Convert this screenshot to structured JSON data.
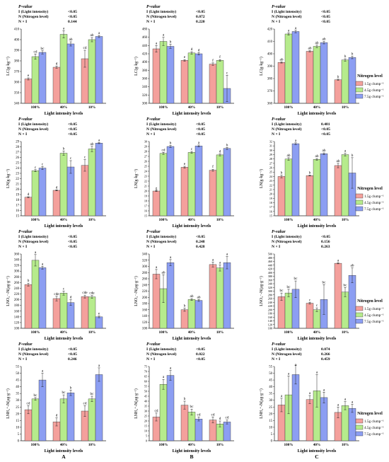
{
  "chart_data": [
    {
      "id": "A1",
      "type": "bar",
      "ylabel": "LC(g·kg⁻¹)",
      "ylim": [
        340,
        410
      ],
      "ystep": 10,
      "pvalue": {
        "title": "P-value",
        "lines": [
          [
            "I (Light intensity)",
            "<0.05",
            ""
          ],
          [
            "N (Nitrogen level)",
            "<0.05",
            ""
          ],
          [
            "N × I",
            "",
            "0.144"
          ]
        ]
      },
      "values": [
        [
          363,
          384,
          388
        ],
        [
          374,
          405,
          396
        ],
        [
          382,
          400,
          403
        ]
      ],
      "errors": [
        [
          1,
          2.5,
          1.5
        ],
        [
          1,
          3.5,
          2
        ],
        [
          8,
          2,
          1
        ]
      ],
      "letters": [
        [
          "e",
          "cd",
          "bc"
        ],
        [
          "d",
          "a",
          "ab"
        ],
        [
          "cd",
          "ab",
          "a"
        ]
      ]
    },
    {
      "id": "B1",
      "type": "bar",
      "ylabel": "LC(g·kg⁻¹)",
      "ylim": [
        300,
        480
      ],
      "ystep": 20,
      "pvalue": {
        "title": "P-value",
        "lines": [
          [
            "I (Light intensity)",
            "<0.05",
            ""
          ],
          [
            "N (Nitrogen level)",
            "0.072",
            ""
          ],
          [
            "N × I",
            "",
            "0.220"
          ]
        ]
      },
      "values": [
        [
          432,
          450,
          438
        ],
        [
          404,
          422,
          420
        ],
        [
          395,
          404,
          336
        ]
      ],
      "errors": [
        [
          8,
          10,
          5
        ],
        [
          2,
          3,
          3
        ],
        [
          3,
          2,
          32
        ]
      ],
      "letters": [
        [
          "a",
          "a",
          "b"
        ],
        [
          "e",
          "d",
          "d"
        ],
        [
          "f",
          "f",
          "c"
        ]
      ]
    },
    {
      "id": "C1",
      "type": "bar",
      "ylabel": "LC(g·kg⁻¹)",
      "ylim": [
        360,
        420
      ],
      "ystep": 10,
      "pvalue": {
        "title": "P-value",
        "lines": [
          [
            "I (Light intensity)",
            "<0.05",
            ""
          ],
          [
            "N (Nitrogen level)",
            "<0.05",
            ""
          ],
          [
            "N × I",
            "",
            "<0.05"
          ]
        ]
      },
      "values": [
        [
          393,
          416,
          418
        ],
        [
          402,
          406,
          409
        ],
        [
          379,
          395,
          397
        ]
      ],
      "errors": [
        [
          0.5,
          1,
          1
        ],
        [
          0.5,
          1,
          1
        ],
        [
          0.5,
          1,
          1
        ]
      ],
      "letters": [
        [
          "ab",
          "a",
          "a"
        ],
        [
          "ab",
          "ab",
          "ab"
        ],
        [
          "b",
          "b",
          "b"
        ]
      ]
    },
    {
      "id": "A2",
      "type": "bar",
      "ylabel": "LN(g·kg⁻¹)",
      "ylim": [
        15,
        29
      ],
      "ystep": 1,
      "pvalue": {
        "title": "P-value",
        "lines": [
          [
            "I (Light intensity)",
            "<0.05",
            ""
          ],
          [
            "N (Nitrogen level)",
            "<0.05",
            ""
          ],
          [
            "N × I",
            "",
            "<0.05"
          ]
        ]
      },
      "values": [
        [
          18.5,
          23.5,
          24
        ],
        [
          19.8,
          26.8,
          24.2
        ],
        [
          24.5,
          27.6,
          28.7
        ]
      ],
      "errors": [
        [
          0.1,
          0.2,
          0.3
        ],
        [
          0.1,
          0.4,
          1.2
        ],
        [
          1.1,
          0.5,
          0.1
        ]
      ],
      "letters": [
        [
          "d",
          "c",
          "c"
        ],
        [
          "d",
          "b",
          "c"
        ],
        [
          "c",
          "ab",
          "a"
        ]
      ]
    },
    {
      "id": "B2",
      "type": "bar",
      "ylabel": "LN(g·kg⁻¹)",
      "ylim": [
        15,
        30
      ],
      "ystep": 1,
      "pvalue": {
        "title": "P-value",
        "lines": [
          [
            "I (Light intensity)",
            "<0.05",
            ""
          ],
          [
            "N (Nitrogen level)",
            "<0.05",
            ""
          ],
          [
            "N × I",
            "",
            "<0.05"
          ]
        ]
      },
      "values": [
        [
          20,
          27.6,
          29
        ],
        [
          24.8,
          27.8,
          29.1
        ],
        [
          24.2,
          27.3,
          28.6
        ]
      ],
      "errors": [
        [
          0.1,
          0.2,
          0.2
        ],
        [
          0.2,
          0.2,
          0.2
        ],
        [
          0.2,
          0.2,
          0.2
        ]
      ],
      "letters": [
        [
          "g",
          "cd",
          "b"
        ],
        [
          "e",
          "c",
          "a"
        ],
        [
          "f",
          "d",
          "b"
        ]
      ]
    },
    {
      "id": "C2",
      "type": "bar",
      "ylabel": "LN(g·kg⁻¹)",
      "ylim": [
        15,
        32
      ],
      "ystep": 1,
      "pvalue": {
        "title": "P-value",
        "lines": [
          [
            "I (Light intensity)",
            "0.481",
            ""
          ],
          [
            "N (Nitrogen level)",
            "<0.05",
            ""
          ],
          [
            "N × I",
            "",
            "<0.05"
          ]
        ]
      },
      "values": [
        [
          24,
          28,
          31.5
        ],
        [
          24.2,
          27.9,
          29.2
        ],
        [
          26.5,
          29,
          24.8
        ]
      ],
      "errors": [
        [
          0.3,
          0.3,
          0.2
        ],
        [
          0.1,
          0.2,
          0.2
        ],
        [
          0.5,
          0.3,
          3.5
        ]
      ],
      "letters": [
        [
          "b",
          "ab",
          "a"
        ],
        [
          "b",
          "ab",
          "ab"
        ],
        [
          "ab",
          "a",
          "b"
        ]
      ]
    },
    {
      "id": "A3",
      "type": "bar",
      "ylabel": "LNO₃⁻-N(μg·g⁻¹)",
      "ylim": [
        100,
        360
      ],
      "ystep": 20,
      "pvalue": {
        "title": "P-value",
        "lines": [
          [
            "I (Light intensity)",
            "<0.05",
            ""
          ],
          [
            "N (Nitrogen level)",
            "<0.05",
            ""
          ],
          [
            "N × I",
            "",
            "<0.05"
          ]
        ]
      },
      "values": [
        [
          253,
          338,
          312
        ],
        [
          204,
          223,
          190
        ],
        [
          211,
          210,
          140
        ]
      ],
      "errors": [
        [
          5,
          20,
          5
        ],
        [
          8,
          7,
          10
        ],
        [
          5,
          5,
          3
        ]
      ],
      "letters": [
        [
          "b",
          "a",
          "a"
        ],
        [
          "cde",
          "c",
          "d"
        ],
        [
          "cde",
          "cde",
          "e"
        ]
      ]
    },
    {
      "id": "B3",
      "type": "bar",
      "ylabel": "LNO₃⁻-N(μg·g⁻¹)",
      "ylim": [
        100,
        340
      ],
      "ystep": 20,
      "pvalue": {
        "title": "P-value",
        "lines": [
          [
            "I (Light intensity)",
            "<0.05",
            ""
          ],
          [
            "N (Nitrogen level)",
            "0.248",
            ""
          ],
          [
            "N × I",
            "",
            "0.428"
          ]
        ]
      },
      "values": [
        [
          275,
          228,
          312
        ],
        [
          160,
          193,
          190
        ],
        [
          306,
          295,
          312
        ]
      ],
      "errors": [
        [
          15,
          45,
          10
        ],
        [
          5,
          3,
          3
        ],
        [
          8,
          10,
          20
        ]
      ],
      "letters": [
        [
          "a",
          "ab",
          "a"
        ],
        [
          "b",
          "ab",
          "ab"
        ],
        [
          "a",
          "a",
          "a"
        ]
      ]
    },
    {
      "id": "C3",
      "type": "bar",
      "ylabel": "LNO₃⁻-N(μg·g⁻¹)",
      "ylim": [
        100,
        500
      ],
      "ystep": 20,
      "pvalue": {
        "title": "P-value",
        "lines": [
          [
            "I (Light intensity)",
            "<0.05",
            ""
          ],
          [
            "N (Nitrogen level)",
            "0.156",
            ""
          ],
          [
            "N × I",
            "",
            "0.263"
          ]
        ]
      },
      "values": [
        [
          270,
          290,
          310
        ],
        [
          235,
          200,
          255
        ],
        [
          450,
          295,
          385
        ]
      ],
      "errors": [
        [
          20,
          20,
          45
        ],
        [
          5,
          10,
          80
        ],
        [
          3,
          25,
          40
        ]
      ],
      "letters": [
        [
          "bc",
          "bc",
          "bc"
        ],
        [
          "c",
          "c",
          "bc"
        ],
        [
          "a",
          "bc",
          "ab"
        ]
      ]
    },
    {
      "id": "A4",
      "type": "bar",
      "ylabel": "LNH₄⁺-N(μg·g⁻¹)",
      "ylim": [
        0,
        55
      ],
      "ystep": 5,
      "pvalue": {
        "title": "P-value",
        "lines": [
          [
            "I (Light intensity)",
            "<0.05",
            ""
          ],
          [
            "N (Nitrogen level)",
            "<0.05",
            ""
          ],
          [
            "N × I",
            "",
            "0.246"
          ]
        ]
      },
      "values": [
        [
          23,
          31,
          45
        ],
        [
          14,
          31,
          35.5
        ],
        [
          22,
          31,
          49
        ]
      ],
      "errors": [
        [
          3,
          1,
          5
        ],
        [
          3,
          3,
          2
        ],
        [
          4,
          2,
          5
        ]
      ],
      "letters": [
        [
          "cd",
          "bc",
          "a"
        ],
        [
          "d",
          "bc",
          "b"
        ],
        [
          "cd",
          "bc",
          "a"
        ]
      ]
    },
    {
      "id": "B4",
      "type": "bar",
      "ylabel": "LNH₄⁺-N(μg·g⁻¹)",
      "ylim": [
        0,
        75
      ],
      "ystep": 5,
      "pvalue": {
        "title": "P-value",
        "lines": [
          [
            "I (Light intensity)",
            "<0.05",
            ""
          ],
          [
            "N (Nitrogen level)",
            "0.022",
            ""
          ],
          [
            "N × I",
            "",
            "<0.05"
          ]
        ]
      },
      "values": [
        [
          24,
          57,
          66
        ],
        [
          36,
          29,
          22
        ],
        [
          21,
          17,
          19
        ]
      ],
      "errors": [
        [
          4,
          5,
          5
        ],
        [
          4,
          3,
          2
        ],
        [
          3,
          3,
          2
        ]
      ],
      "letters": [
        [
          "cd",
          "a",
          "a"
        ],
        [
          "b",
          "bc",
          "cd"
        ],
        [
          "cd",
          "d",
          "cd"
        ]
      ]
    },
    {
      "id": "C4",
      "type": "bar",
      "ylabel": "LNH₄⁺-N(μg·g⁻¹)",
      "ylim": [
        0,
        55
      ],
      "ystep": 5,
      "pvalue": {
        "title": "P-value",
        "lines": [
          [
            "I (Light intensity)",
            "0.074",
            ""
          ],
          [
            "N (Nitrogen level)",
            "0.266",
            ""
          ],
          [
            "N × I",
            "",
            "0.459"
          ]
        ]
      },
      "values": [
        [
          26.5,
          34,
          49
        ],
        [
          30.5,
          37,
          32
        ],
        [
          21,
          26,
          24
        ]
      ],
      "errors": [
        [
          5,
          14,
          7
        ],
        [
          3,
          12,
          4
        ],
        [
          4,
          3,
          3
        ]
      ],
      "letters": [
        [
          "a",
          "a",
          "a"
        ],
        [
          "a",
          "a",
          "a"
        ],
        [
          "a",
          "a",
          "a"
        ]
      ]
    }
  ],
  "categories": [
    "100%",
    "40%",
    "10%"
  ],
  "xlabel": "Light intensity levels",
  "legend": {
    "title": "Nitrogen level",
    "items": [
      "1.5g clump⁻¹",
      "4.5g clump⁻¹",
      "7.5g clump⁻¹"
    ]
  },
  "colors": {
    "series": [
      "#f4a09c",
      "#b6eb8c",
      "#8c9ef2"
    ],
    "axis": "#222222"
  },
  "panel_labels": [
    "A",
    "B",
    "C"
  ]
}
